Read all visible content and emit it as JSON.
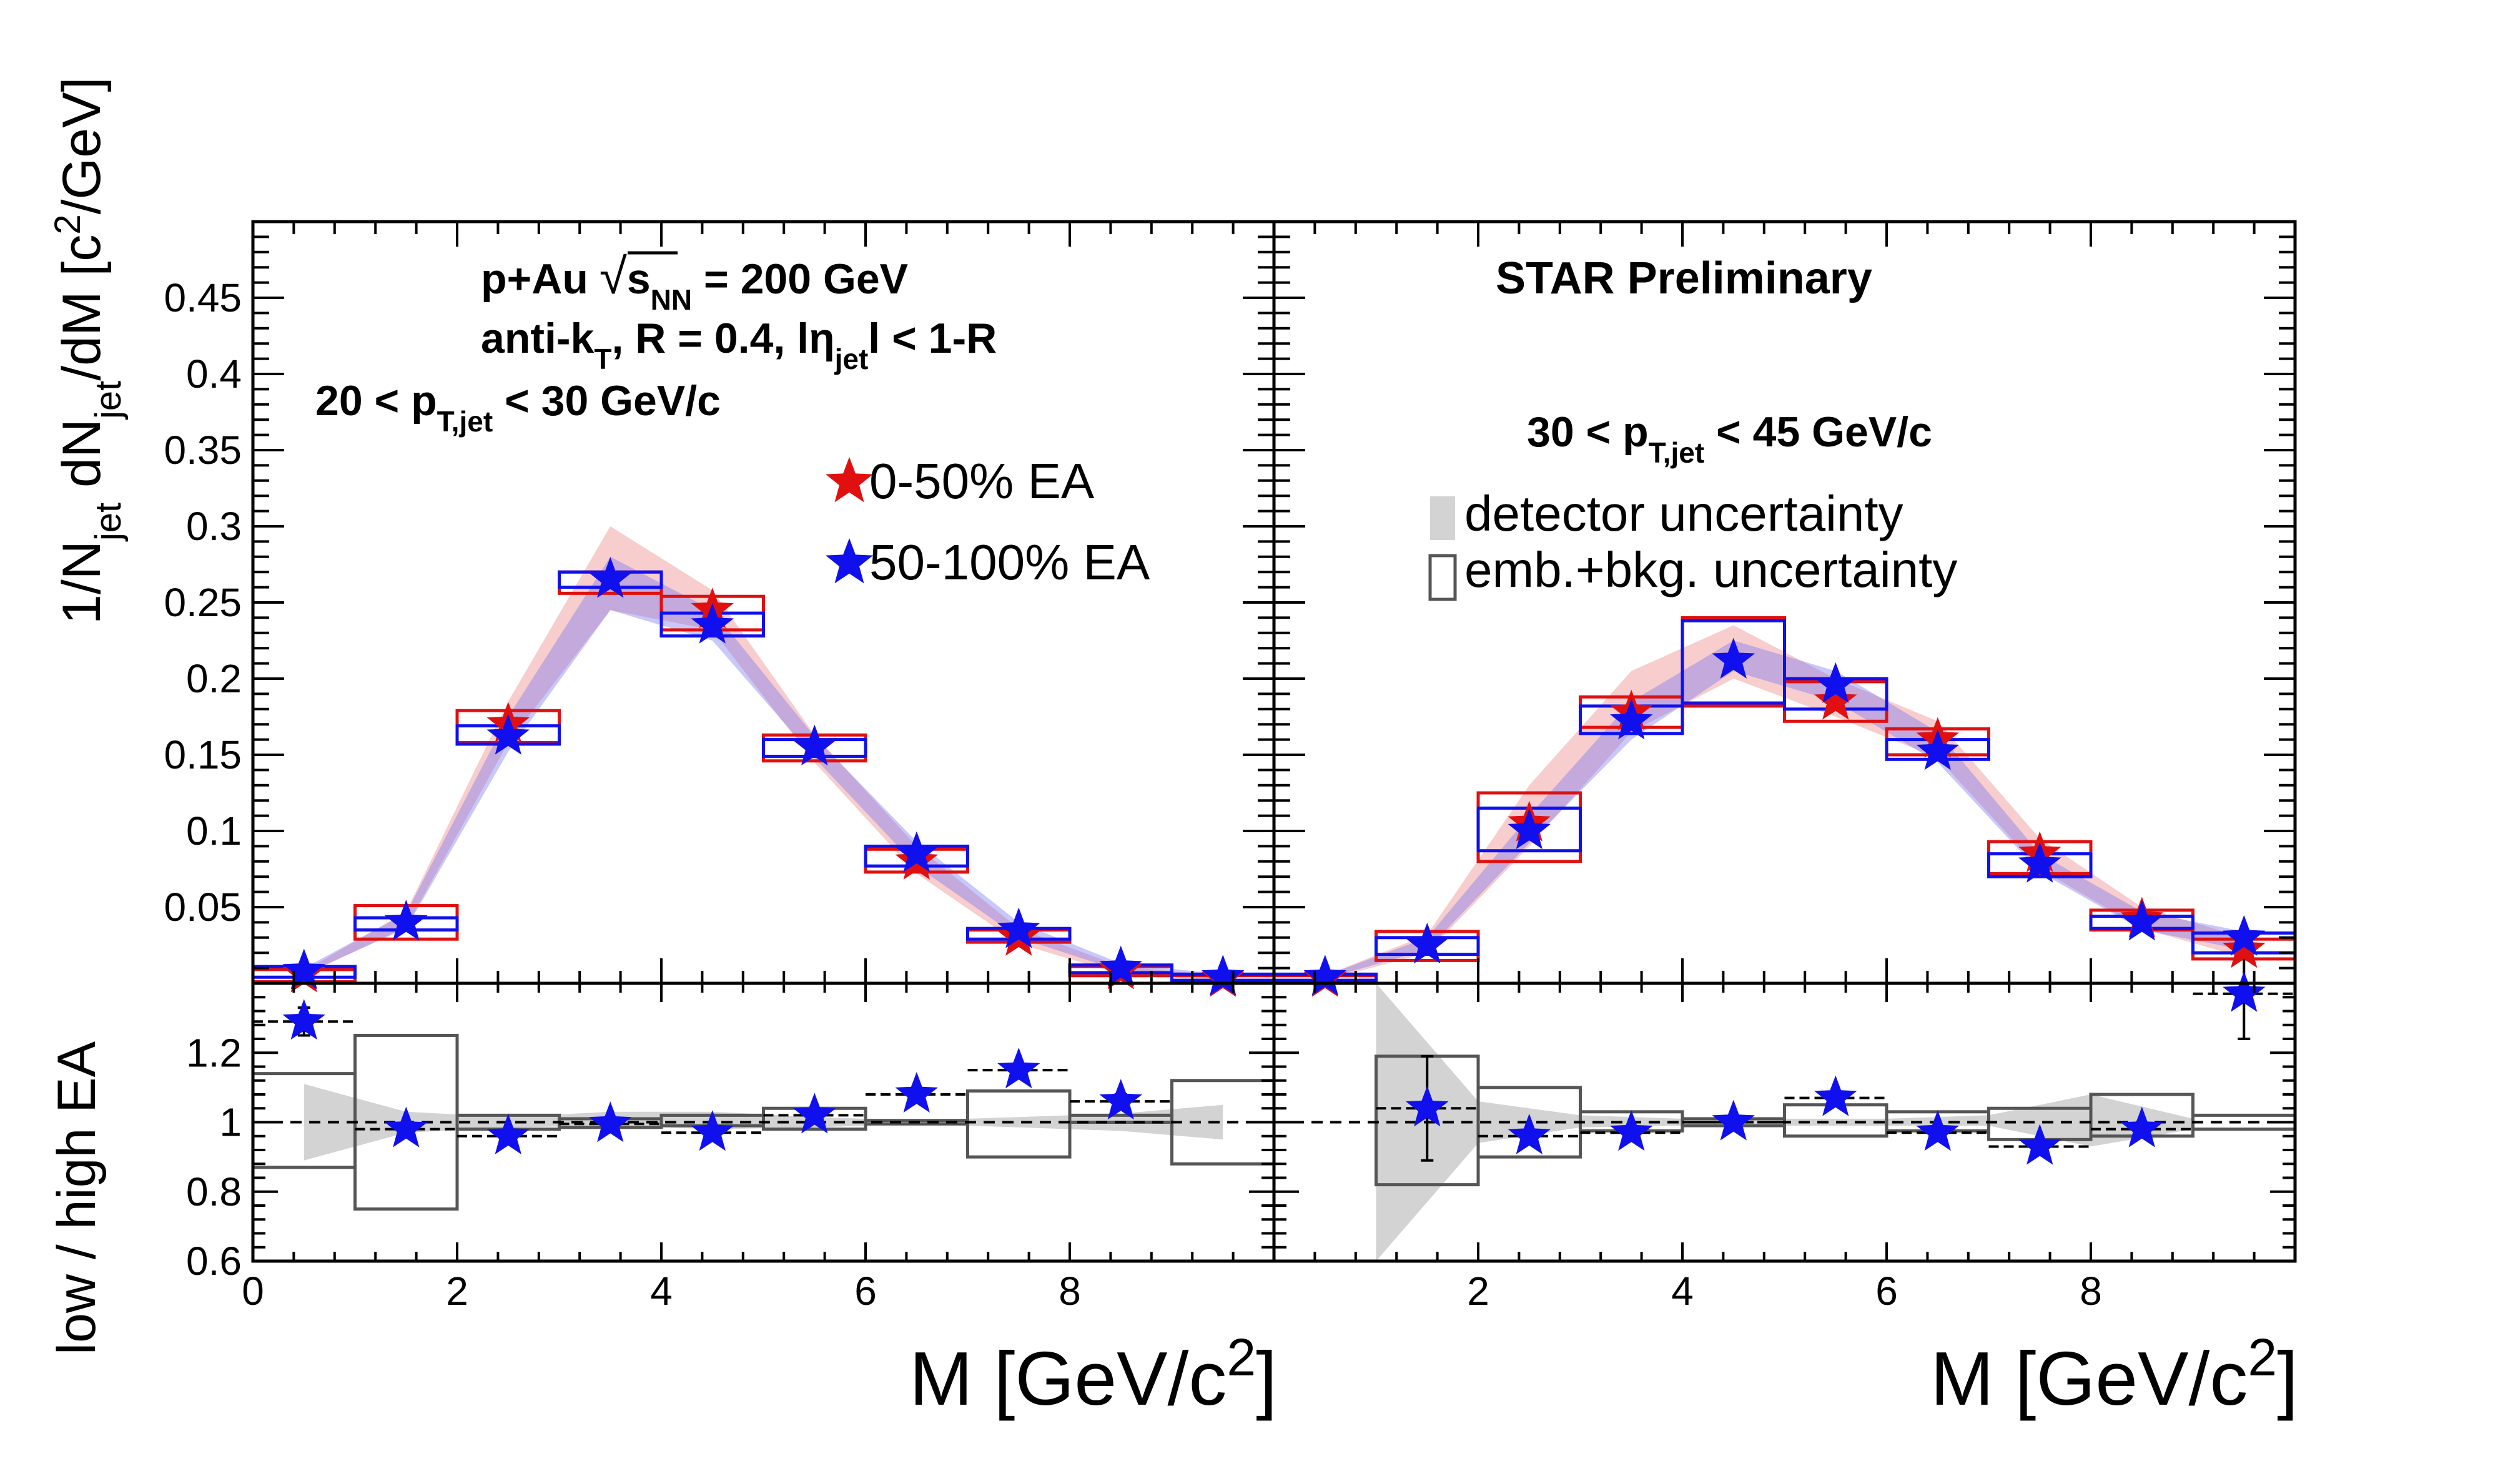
{
  "colors": {
    "group1": "#e01010",
    "group2": "#1010ee",
    "detector_band": "#d3d3d3",
    "emb_box": "#555555"
  },
  "chart_data": [
    {
      "type": "scatter",
      "panel": "top-left",
      "ylabel": "1/N_jet dN_jet/dM [c^2/GeV]",
      "ylabel_parts": {
        "pre": "1/N",
        "sub1": "jet",
        "mid": " dN",
        "sub2": "jet",
        "post": "/dM [c",
        "sup": "2",
        "end": "/GeV]"
      },
      "xlim": [
        0,
        10
      ],
      "ylim": [
        0,
        0.5
      ],
      "yticks": [
        0.05,
        0.1,
        0.15,
        0.2,
        0.25,
        0.3,
        0.35,
        0.4,
        0.45
      ],
      "ytick_labels": [
        "0.05",
        "0.1",
        "0.15",
        "0.2",
        "0.25",
        "0.3",
        "0.35",
        "0.4",
        "0.45"
      ],
      "annotations": {
        "system_pre": "p+Au",
        "sqrt": "√",
        "s": "s",
        "s_sub": "NN",
        "system_post": " = 200 GeV",
        "algo_pre": "anti-k",
        "algo_sub": "T",
        "algo_mid": ", R = 0.4, lη",
        "algo_sub2": "jet",
        "algo_post": "l < 1-R",
        "pt_pre": "20 < p",
        "pt_sub": "T,jet",
        "pt_post": " < 30 GeV/c"
      },
      "legend": [
        {
          "name": "0-50% EA",
          "color": "#e01010"
        },
        {
          "name": "50-100% EA",
          "color": "#1010ee"
        }
      ],
      "x": [
        0.5,
        1.5,
        2.5,
        3.5,
        4.5,
        5.5,
        6.5,
        7.5,
        8.5,
        9.5
      ],
      "series": [
        {
          "name": "0-50% EA",
          "color": "#e01010",
          "values": [
            0.006,
            0.04,
            0.17,
            0.265,
            0.245,
            0.155,
            0.08,
            0.03,
            0.008,
            0.003
          ],
          "box_low": [
            0.001,
            0.029,
            0.158,
            0.256,
            0.232,
            0.146,
            0.073,
            0.027,
            0.005,
            0.001
          ],
          "box_high": [
            0.009,
            0.051,
            0.179,
            0.27,
            0.254,
            0.163,
            0.088,
            0.035,
            0.011,
            0.005
          ],
          "band_low": [
            0.005,
            0.037,
            0.158,
            0.245,
            0.232,
            0.145,
            0.072,
            0.026,
            0.006,
            0.002
          ],
          "band_high": [
            0.008,
            0.047,
            0.185,
            0.3,
            0.258,
            0.163,
            0.09,
            0.036,
            0.011,
            0.005
          ]
        },
        {
          "name": "50-100% EA",
          "color": "#1010ee",
          "values": [
            0.008,
            0.04,
            0.162,
            0.265,
            0.235,
            0.155,
            0.085,
            0.035,
            0.01,
            0.004
          ],
          "box_low": [
            0.004,
            0.035,
            0.157,
            0.26,
            0.228,
            0.149,
            0.077,
            0.029,
            0.007,
            0.002
          ],
          "box_high": [
            0.011,
            0.043,
            0.169,
            0.27,
            0.243,
            0.16,
            0.09,
            0.036,
            0.012,
            0.006
          ],
          "band_low": [
            0.006,
            0.036,
            0.152,
            0.245,
            0.225,
            0.148,
            0.077,
            0.03,
            0.008,
            0.003
          ],
          "band_high": [
            0.01,
            0.046,
            0.175,
            0.28,
            0.245,
            0.162,
            0.093,
            0.04,
            0.013,
            0.006
          ]
        }
      ]
    },
    {
      "type": "scatter",
      "panel": "top-right",
      "xlim": [
        0,
        10
      ],
      "ylim": [
        0,
        0.5
      ],
      "annotations": {
        "preliminary": "STAR Preliminary",
        "pt_pre": "30 < p",
        "pt_sub": "T,jet",
        "pt_post": " < 45 GeV/c"
      },
      "legend": [
        {
          "name": "detector uncertainty",
          "color": "#d3d3d3"
        },
        {
          "name": "emb.+bkg. uncertainty",
          "color": "#555555"
        }
      ],
      "x": [
        0.5,
        1.5,
        2.5,
        3.5,
        4.5,
        5.5,
        6.5,
        7.5,
        8.5,
        9.5
      ],
      "series": [
        {
          "name": "0-50% EA",
          "color": "#e01010",
          "values": [
            0.003,
            0.025,
            0.105,
            0.178,
            0.212,
            0.185,
            0.16,
            0.085,
            0.042,
            0.022
          ],
          "box_low": [
            0.001,
            0.015,
            0.08,
            0.168,
            0.182,
            0.172,
            0.15,
            0.072,
            0.035,
            0.016
          ],
          "box_high": [
            0.005,
            0.034,
            0.125,
            0.188,
            0.24,
            0.198,
            0.167,
            0.093,
            0.048,
            0.029
          ],
          "band_low": [
            0.002,
            0.02,
            0.09,
            0.165,
            0.2,
            0.175,
            0.148,
            0.075,
            0.036,
            0.017
          ],
          "band_high": [
            0.005,
            0.032,
            0.13,
            0.205,
            0.235,
            0.2,
            0.172,
            0.095,
            0.05,
            0.03
          ]
        },
        {
          "name": "50-100% EA",
          "color": "#1010ee",
          "values": [
            0.004,
            0.025,
            0.1,
            0.172,
            0.212,
            0.196,
            0.152,
            0.078,
            0.04,
            0.03
          ],
          "box_low": [
            0.002,
            0.019,
            0.087,
            0.164,
            0.184,
            0.18,
            0.147,
            0.07,
            0.036,
            0.02
          ],
          "box_high": [
            0.006,
            0.03,
            0.115,
            0.182,
            0.238,
            0.2,
            0.16,
            0.085,
            0.044,
            0.033
          ],
          "band_low": [
            0.003,
            0.022,
            0.092,
            0.16,
            0.205,
            0.185,
            0.145,
            0.073,
            0.035,
            0.022
          ],
          "band_high": [
            0.005,
            0.03,
            0.11,
            0.185,
            0.225,
            0.205,
            0.165,
            0.085,
            0.047,
            0.034
          ]
        }
      ]
    },
    {
      "type": "scatter",
      "panel": "bottom-left",
      "ylabel": "low / high EA",
      "xlabel": "M [GeV/c^2]",
      "xlabel_parts": {
        "pre": "M [GeV/c",
        "sup": "2",
        "post": "]"
      },
      "xlim": [
        0,
        10
      ],
      "ylim": [
        0.6,
        1.4
      ],
      "yticks": [
        0.6,
        0.8,
        1.0,
        1.2
      ],
      "ytick_labels": [
        "0.6",
        "0.8",
        "1",
        "1.2"
      ],
      "xticks": [
        0,
        2,
        4,
        6,
        8
      ],
      "xtick_labels": [
        "0",
        "2",
        "4",
        "6",
        "8"
      ],
      "x": [
        0.5,
        1.5,
        2.5,
        3.5,
        4.5,
        5.5,
        6.5,
        7.5,
        8.5
      ],
      "values": [
        1.29,
        0.98,
        0.96,
        0.995,
        0.97,
        1.02,
        1.08,
        1.15,
        1.06
      ],
      "stat_err": [
        0.04,
        0.015,
        0.01,
        0.01,
        0.01,
        0.01,
        0.01,
        0.015,
        0.02
      ],
      "emb_box_low": [
        0.87,
        0.75,
        0.98,
        0.985,
        0.99,
        0.98,
        0.995,
        0.9,
        1.0,
        0.88
      ],
      "emb_box_high": [
        1.14,
        1.25,
        1.02,
        1.01,
        1.02,
        1.04,
        1.005,
        1.09,
        1.02,
        1.12
      ],
      "band_low": [
        0.89,
        0.97,
        0.985,
        0.99,
        0.98,
        0.985,
        0.995,
        0.985,
        0.975,
        0.95
      ],
      "band_high": [
        1.11,
        1.03,
        1.015,
        1.03,
        1.03,
        1.015,
        1.005,
        1.015,
        1.025,
        1.05
      ]
    },
    {
      "type": "scatter",
      "panel": "bottom-right",
      "xlabel": "M [GeV/c^2]",
      "xlabel_parts": {
        "pre": "M [GeV/c",
        "sup": "2",
        "post": "]"
      },
      "xlim": [
        0,
        10
      ],
      "ylim": [
        0.6,
        1.4
      ],
      "xticks": [
        2,
        4,
        6,
        8
      ],
      "xtick_labels": [
        "2",
        "4",
        "6",
        "8"
      ],
      "x": [
        1.5,
        2.5,
        3.5,
        4.5,
        5.5,
        6.5,
        7.5,
        8.5,
        9.5
      ],
      "values": [
        1.04,
        0.96,
        0.97,
        1.0,
        1.07,
        0.97,
        0.93,
        0.98,
        1.37
      ],
      "stat_err": [
        0.15,
        0.01,
        0.01,
        0.01,
        0.01,
        0.01,
        0.01,
        0.01,
        0.13
      ],
      "emb_box_low": [
        0.82,
        0.9,
        0.975,
        0.99,
        0.96,
        0.975,
        0.95,
        0.96,
        0.98
      ],
      "emb_box_high": [
        1.19,
        1.1,
        1.03,
        1.01,
        1.05,
        1.03,
        1.04,
        1.08,
        1.02
      ],
      "band_low": [
        0.6,
        0.94,
        0.985,
        0.99,
        0.99,
        0.99,
        0.99,
        0.93,
        0.98
      ],
      "band_high": [
        1.4,
        1.06,
        1.02,
        1.01,
        1.01,
        1.01,
        1.02,
        1.08,
        1.01
      ]
    }
  ]
}
